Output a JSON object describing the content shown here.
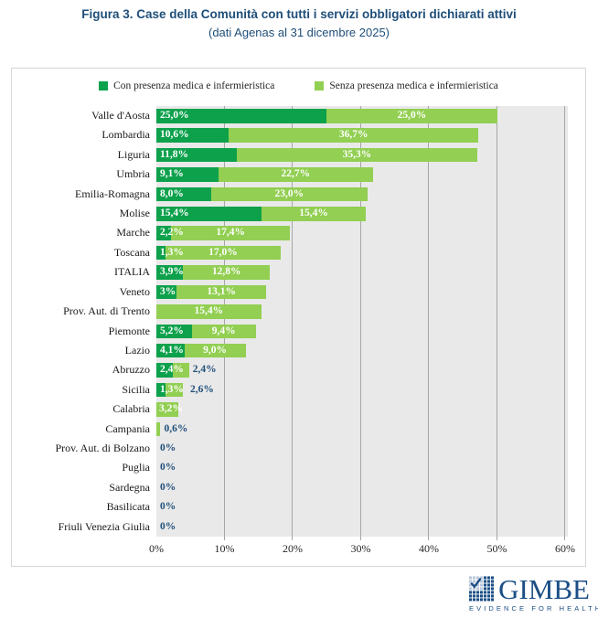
{
  "title": {
    "line1": "Figura 3. Case della Comunità con tutti i servizi obbligatori dichiarati attivi",
    "line2": "(dati Agenas al 31 dicembre 2025)"
  },
  "colors": {
    "con": "#0DA14C",
    "senza": "#92CF52",
    "outside_label": "#1F4E79",
    "title": "#1F4E79",
    "plot_bg": "#E9E9E9",
    "gridline": "#A6A6A6",
    "logo_navy": "#1B4E85"
  },
  "legend": {
    "items": [
      {
        "label": "Con presenza medica e infermieristica",
        "color": "#0DA14C"
      },
      {
        "label": "Senza presenza medica e infermieristica",
        "color": "#92CF52"
      }
    ]
  },
  "chart_data": {
    "type": "bar",
    "orientation": "horizontal",
    "stacked": true,
    "grid": true,
    "legend_position": "top",
    "xlim": [
      0,
      60
    ],
    "x_ticks": [
      "0%",
      "10%",
      "20%",
      "30%",
      "40%",
      "50%",
      "60%"
    ],
    "categories": [
      "Valle d'Aosta",
      "Lombardia",
      "Liguria",
      "Umbria",
      "Emilia-Romagna",
      "Molise",
      "Marche",
      "Toscana",
      "ITALIA",
      "Veneto",
      "Prov. Aut. di Trento",
      "Piemonte",
      "Lazio",
      "Abruzzo",
      "Sicilia",
      "Calabria",
      "Campania",
      "Prov. Aut. di Bolzano",
      "Puglia",
      "Sardegna",
      "Basilicata",
      "Friuli Venezia Giulia"
    ],
    "series": [
      {
        "name": "Con presenza medica e infermieristica",
        "color": "#0DA14C",
        "values": [
          25.0,
          10.6,
          11.8,
          9.1,
          8.0,
          15.4,
          2.2,
          1.3,
          3.9,
          3.0,
          0,
          5.2,
          4.1,
          2.4,
          1.3,
          0,
          0,
          0,
          0,
          0,
          0,
          0
        ]
      },
      {
        "name": "Senza presenza medica e infermieristica",
        "color": "#92CF52",
        "values": [
          25.0,
          36.7,
          35.3,
          22.7,
          23.0,
          15.4,
          17.4,
          17.0,
          12.8,
          13.1,
          15.4,
          9.4,
          9.0,
          2.4,
          2.6,
          3.2,
          0.6,
          0,
          0,
          0,
          0,
          0
        ]
      }
    ],
    "rows": [
      {
        "label": "Valle d'Aosta",
        "con": 25.0,
        "senza": 25.0,
        "con_label": "25,0%",
        "senza_label": "25,0%",
        "senza_mode": "center"
      },
      {
        "label": "Lombardia",
        "con": 10.6,
        "senza": 36.7,
        "con_label": "10,6%",
        "senza_label": "36,7%",
        "senza_mode": "center"
      },
      {
        "label": "Liguria",
        "con": 11.8,
        "senza": 35.3,
        "con_label": "11,8%",
        "senza_label": "35,3%",
        "senza_mode": "center"
      },
      {
        "label": "Umbria",
        "con": 9.1,
        "senza": 22.7,
        "con_label": "9,1%",
        "senza_label": "22,7%",
        "senza_mode": "center"
      },
      {
        "label": "Emilia-Romagna",
        "con": 8.0,
        "senza": 23.0,
        "con_label": "8,0%",
        "senza_label": "23,0%",
        "senza_mode": "center"
      },
      {
        "label": "Molise",
        "con": 15.4,
        "senza": 15.4,
        "con_label": "15,4%",
        "senza_label": "15,4%",
        "senza_mode": "center"
      },
      {
        "label": "Marche",
        "con": 2.2,
        "senza": 17.4,
        "con_label": "2,2%",
        "senza_label": "17,4%",
        "senza_mode": "center"
      },
      {
        "label": "Toscana",
        "con": 1.3,
        "senza": 17.0,
        "con_label": "1,3%",
        "senza_label": "17,0%",
        "senza_mode": "center"
      },
      {
        "label": "ITALIA",
        "con": 3.9,
        "senza": 12.8,
        "con_label": "3,9%",
        "senza_label": "12,8%",
        "senza_mode": "center"
      },
      {
        "label": "Veneto",
        "con": 3.0,
        "senza": 13.1,
        "con_label": "3%",
        "senza_label": "13,1%",
        "senza_mode": "center"
      },
      {
        "label": "Prov. Aut. di Trento",
        "con": 0,
        "senza": 15.4,
        "con_label": null,
        "senza_label": "15,4%",
        "senza_mode": "center"
      },
      {
        "label": "Piemonte",
        "con": 5.2,
        "senza": 9.4,
        "con_label": "5,2%",
        "senza_label": "9,4%",
        "senza_mode": "center"
      },
      {
        "label": "Lazio",
        "con": 4.1,
        "senza": 9.0,
        "con_label": "4,1%",
        "senza_label": "9,0%",
        "senza_mode": "center"
      },
      {
        "label": "Abruzzo",
        "con": 2.4,
        "senza": 2.4,
        "con_label": "2,4%",
        "senza_label": "2,4%",
        "senza_mode": "outside"
      },
      {
        "label": "Sicilia",
        "con": 1.3,
        "senza": 2.6,
        "con_label": "1,3%",
        "senza_label": "2,6%",
        "senza_mode": "outside"
      },
      {
        "label": "Calabria",
        "con": 0,
        "senza": 3.2,
        "con_label": null,
        "senza_label": "3,2%",
        "senza_mode": "inside-left"
      },
      {
        "label": "Campania",
        "con": 0,
        "senza": 0.6,
        "con_label": null,
        "senza_label": "0,6%",
        "senza_mode": "outside"
      },
      {
        "label": "Prov. Aut. di Bolzano",
        "con": 0,
        "senza": 0,
        "con_label": null,
        "senza_label": "0%",
        "senza_mode": "outside"
      },
      {
        "label": "Puglia",
        "con": 0,
        "senza": 0,
        "con_label": null,
        "senza_label": "0%",
        "senza_mode": "outside"
      },
      {
        "label": "Sardegna",
        "con": 0,
        "senza": 0,
        "con_label": null,
        "senza_label": "0%",
        "senza_mode": "outside"
      },
      {
        "label": "Basilicata",
        "con": 0,
        "senza": 0,
        "con_label": null,
        "senza_label": "0%",
        "senza_mode": "outside"
      },
      {
        "label": "Friuli Venezia Giulia",
        "con": 0,
        "senza": 0,
        "con_label": null,
        "senza_label": "0%",
        "senza_mode": "outside"
      }
    ]
  },
  "footer_logo": {
    "name": "GIMBE",
    "tagline": "EVIDENCE FOR HEALTH"
  }
}
